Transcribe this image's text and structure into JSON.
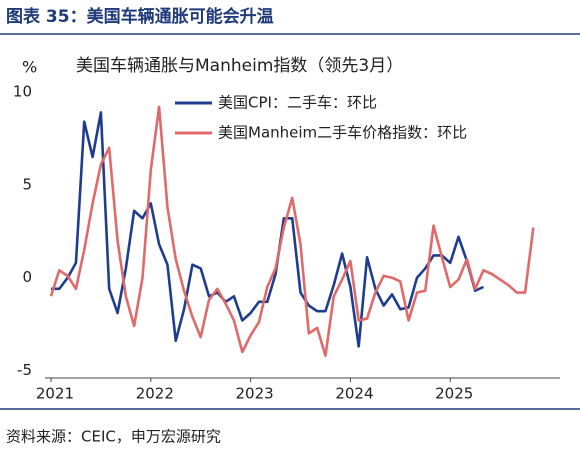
{
  "header": {
    "title": "图表 35：美国车辆通胀可能会升温"
  },
  "chart_data": {
    "type": "line",
    "title": "美国车辆通胀与Manheim指数（领先3月）",
    "y_label": "%",
    "x": [
      2021,
      2021.083,
      2021.167,
      2021.25,
      2021.333,
      2021.417,
      2021.5,
      2021.583,
      2021.667,
      2021.75,
      2021.833,
      2021.917,
      2022,
      2022.083,
      2022.167,
      2022.25,
      2022.333,
      2022.417,
      2022.5,
      2022.583,
      2022.667,
      2022.75,
      2022.833,
      2022.917,
      2023,
      2023.083,
      2023.167,
      2023.25,
      2023.333,
      2023.417,
      2023.5,
      2023.583,
      2023.667,
      2023.75,
      2023.833,
      2023.917,
      2024,
      2024.083,
      2024.167,
      2024.25,
      2024.333,
      2024.417,
      2024.5,
      2024.583,
      2024.667,
      2024.75,
      2024.833,
      2024.917,
      2025,
      2025.083,
      2025.167,
      2025.25,
      2025.333,
      2025.417,
      2025.5,
      2025.583,
      2025.667,
      2025.75,
      2025.833
    ],
    "series": [
      {
        "name": "美国CPI：二手车：环比",
        "color": "#1f3d8f",
        "values": [
          -0.6,
          -0.6,
          0,
          0.8,
          8.4,
          6.5,
          8.9,
          -0.6,
          -1.9,
          0.5,
          3.6,
          3.2,
          4.0,
          1.8,
          0.7,
          -3.4,
          -1.7,
          0.7,
          0.5,
          -1.0,
          -0.8,
          -1.3,
          -1.0,
          -2.3,
          -1.9,
          -1.3,
          -1.3,
          0.2,
          3.2,
          3.2,
          -0.8,
          -1.5,
          -1.8,
          -1.8,
          -0.4,
          1.3,
          -0.5,
          -3.7,
          1.1,
          -0.6,
          -1.5,
          -0.9,
          -1.7,
          -1.6,
          0,
          0.5,
          1.2,
          1.2,
          0.8,
          2.2,
          0.9,
          -0.7,
          -0.5,
          null,
          null,
          null,
          null,
          null,
          null
        ]
      },
      {
        "name": "美国Manheim二手车价格指数：环比",
        "color": "#e06a6a",
        "values": [
          -1.0,
          0.4,
          0.1,
          -0.6,
          1.5,
          4.0,
          6.1,
          7.0,
          2.0,
          -1.0,
          -2.6,
          0.0,
          5.8,
          9.2,
          3.8,
          1.0,
          -0.7,
          -2.1,
          -3.2,
          -1.2,
          -0.6,
          -1.4,
          -2.3,
          -4.0,
          -3.1,
          -2.4,
          -0.5,
          0.5,
          2.7,
          4.3,
          1.8,
          -3.0,
          -2.7,
          -4.2,
          -1.0,
          -0.1,
          0.9,
          -2.3,
          -2.2,
          -0.8,
          0.1,
          0.0,
          -0.2,
          -2.3,
          -0.8,
          -0.7,
          2.8,
          1.1,
          -0.5,
          -0.1,
          1.0,
          -0.6,
          0.4,
          0.2,
          -0.1,
          -0.4,
          -0.8,
          -0.8,
          2.7
        ]
      }
    ],
    "xlim": [
      2020.94,
      2026.1
    ],
    "xticks": [
      2021,
      2022,
      2023,
      2024,
      2025
    ],
    "ylim": [
      -5.4,
      10
    ],
    "yticks": [
      -5,
      0,
      5,
      10
    ],
    "legend": "top"
  },
  "footer": {
    "source": "资料来源：CEIC，申万宏源研究"
  }
}
